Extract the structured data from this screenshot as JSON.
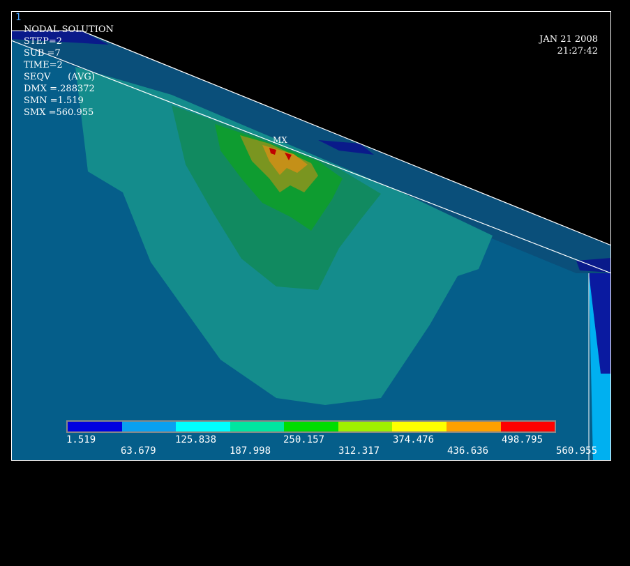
{
  "window": {
    "number": "1"
  },
  "info": {
    "title": "NODAL SOLUTION",
    "lines": [
      "STEP=2",
      "SUB =7",
      "TIME=2",
      "SEQV      (AVG)",
      "DMX =.288372",
      "SMN =1.519",
      "SMX =560.955"
    ]
  },
  "date": {
    "date": "JAN 21 2008",
    "time": "21:27:42"
  },
  "max_marker": "MX",
  "legend": {
    "colors": [
      "#0000e0",
      "#0aa0f0",
      "#00ffff",
      "#00e6a0",
      "#00dd00",
      "#a0f000",
      "#ffff00",
      "#ffa000",
      "#ff0000"
    ],
    "top_labels": [
      "1.519",
      "125.838",
      "250.157",
      "374.476",
      "498.795"
    ],
    "bottom_labels": [
      "63.679",
      "187.998",
      "312.317",
      "436.636",
      "560.955"
    ]
  }
}
